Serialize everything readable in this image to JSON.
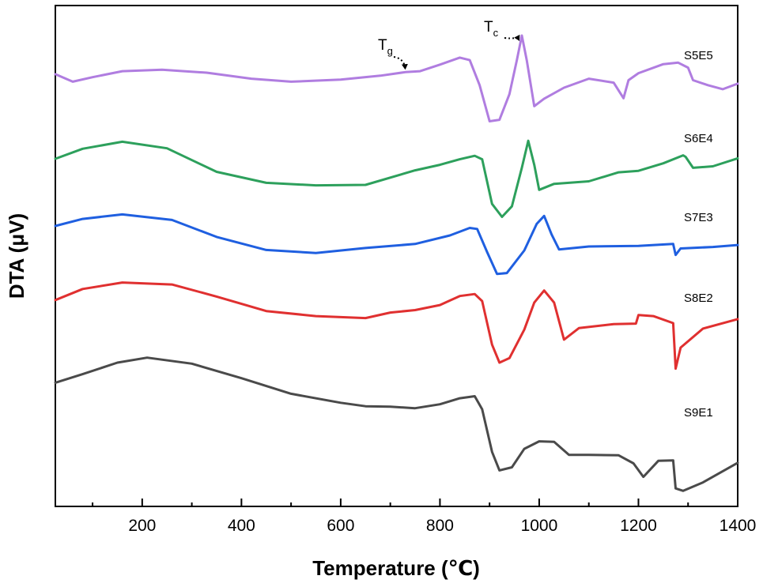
{
  "chart_data": {
    "type": "line",
    "title": "",
    "xlabel": "Temperature (℃)",
    "ylabel": "DTA (μV)",
    "xlim": [
      25,
      1400
    ],
    "ylim": [
      0,
      10
    ],
    "x_ticks": [
      200,
      400,
      600,
      800,
      1000,
      1200,
      1400
    ],
    "x_tick_labels": [
      "200",
      "400",
      "600",
      "800",
      "1000",
      "1200",
      "1400"
    ],
    "y_ticks_shown": false,
    "grid": false,
    "series": [
      {
        "name": "S5E5",
        "color": "#b07de0",
        "points": [
          [
            25,
            8.63
          ],
          [
            60,
            8.48
          ],
          [
            100,
            8.57
          ],
          [
            160,
            8.69
          ],
          [
            240,
            8.72
          ],
          [
            330,
            8.66
          ],
          [
            420,
            8.54
          ],
          [
            500,
            8.48
          ],
          [
            600,
            8.52
          ],
          [
            680,
            8.6
          ],
          [
            730,
            8.67
          ],
          [
            760,
            8.69
          ],
          [
            800,
            8.82
          ],
          [
            840,
            8.96
          ],
          [
            860,
            8.91
          ],
          [
            880,
            8.41
          ],
          [
            900,
            7.69
          ],
          [
            920,
            7.72
          ],
          [
            940,
            8.23
          ],
          [
            955,
            8.91
          ],
          [
            965,
            9.4
          ],
          [
            975,
            8.9
          ],
          [
            990,
            7.99
          ],
          [
            1010,
            8.14
          ],
          [
            1050,
            8.36
          ],
          [
            1100,
            8.54
          ],
          [
            1150,
            8.46
          ],
          [
            1170,
            8.15
          ],
          [
            1180,
            8.51
          ],
          [
            1200,
            8.65
          ],
          [
            1250,
            8.83
          ],
          [
            1280,
            8.86
          ],
          [
            1300,
            8.76
          ],
          [
            1310,
            8.51
          ],
          [
            1340,
            8.41
          ],
          [
            1370,
            8.33
          ],
          [
            1400,
            8.44
          ]
        ]
      },
      {
        "name": "S6E4",
        "color": "#2da05c",
        "points": [
          [
            25,
            6.94
          ],
          [
            80,
            7.14
          ],
          [
            160,
            7.28
          ],
          [
            250,
            7.15
          ],
          [
            350,
            6.68
          ],
          [
            450,
            6.46
          ],
          [
            550,
            6.41
          ],
          [
            650,
            6.42
          ],
          [
            750,
            6.71
          ],
          [
            800,
            6.82
          ],
          [
            840,
            6.93
          ],
          [
            870,
            7.0
          ],
          [
            885,
            6.93
          ],
          [
            905,
            6.04
          ],
          [
            925,
            5.78
          ],
          [
            945,
            5.99
          ],
          [
            965,
            6.76
          ],
          [
            978,
            7.3
          ],
          [
            990,
            6.82
          ],
          [
            1000,
            6.32
          ],
          [
            1030,
            6.44
          ],
          [
            1100,
            6.49
          ],
          [
            1160,
            6.67
          ],
          [
            1200,
            6.7
          ],
          [
            1250,
            6.85
          ],
          [
            1290,
            7.01
          ],
          [
            1295,
            6.98
          ],
          [
            1310,
            6.76
          ],
          [
            1350,
            6.79
          ],
          [
            1400,
            6.95
          ]
        ]
      },
      {
        "name": "S7E3",
        "color": "#1f5fe0",
        "points": [
          [
            25,
            5.6
          ],
          [
            80,
            5.74
          ],
          [
            160,
            5.83
          ],
          [
            260,
            5.72
          ],
          [
            350,
            5.38
          ],
          [
            450,
            5.12
          ],
          [
            550,
            5.06
          ],
          [
            650,
            5.16
          ],
          [
            750,
            5.24
          ],
          [
            820,
            5.41
          ],
          [
            860,
            5.56
          ],
          [
            875,
            5.54
          ],
          [
            895,
            5.08
          ],
          [
            915,
            4.64
          ],
          [
            935,
            4.66
          ],
          [
            970,
            5.11
          ],
          [
            995,
            5.64
          ],
          [
            1010,
            5.8
          ],
          [
            1025,
            5.43
          ],
          [
            1040,
            5.13
          ],
          [
            1100,
            5.19
          ],
          [
            1200,
            5.2
          ],
          [
            1270,
            5.24
          ],
          [
            1275,
            5.02
          ],
          [
            1285,
            5.15
          ],
          [
            1350,
            5.18
          ],
          [
            1400,
            5.22
          ]
        ]
      },
      {
        "name": "S8E2",
        "color": "#e03030",
        "points": [
          [
            25,
            4.12
          ],
          [
            80,
            4.34
          ],
          [
            160,
            4.47
          ],
          [
            260,
            4.43
          ],
          [
            350,
            4.19
          ],
          [
            450,
            3.9
          ],
          [
            550,
            3.8
          ],
          [
            650,
            3.76
          ],
          [
            700,
            3.87
          ],
          [
            750,
            3.92
          ],
          [
            800,
            4.02
          ],
          [
            840,
            4.2
          ],
          [
            870,
            4.24
          ],
          [
            885,
            4.1
          ],
          [
            905,
            3.23
          ],
          [
            920,
            2.87
          ],
          [
            940,
            2.96
          ],
          [
            970,
            3.53
          ],
          [
            990,
            4.07
          ],
          [
            1010,
            4.31
          ],
          [
            1030,
            4.07
          ],
          [
            1050,
            3.33
          ],
          [
            1080,
            3.56
          ],
          [
            1150,
            3.64
          ],
          [
            1195,
            3.65
          ],
          [
            1200,
            3.82
          ],
          [
            1230,
            3.8
          ],
          [
            1270,
            3.66
          ],
          [
            1275,
            2.75
          ],
          [
            1285,
            3.17
          ],
          [
            1330,
            3.55
          ],
          [
            1400,
            3.74
          ]
        ]
      },
      {
        "name": "S9E1",
        "color": "#4a4a4a",
        "points": [
          [
            25,
            2.47
          ],
          [
            80,
            2.64
          ],
          [
            150,
            2.87
          ],
          [
            210,
            2.97
          ],
          [
            300,
            2.85
          ],
          [
            400,
            2.56
          ],
          [
            500,
            2.25
          ],
          [
            600,
            2.07
          ],
          [
            650,
            2.0
          ],
          [
            700,
            1.99
          ],
          [
            750,
            1.96
          ],
          [
            800,
            2.04
          ],
          [
            840,
            2.16
          ],
          [
            870,
            2.2
          ],
          [
            885,
            1.94
          ],
          [
            905,
            1.09
          ],
          [
            920,
            0.72
          ],
          [
            945,
            0.78
          ],
          [
            970,
            1.15
          ],
          [
            1000,
            1.3
          ],
          [
            1030,
            1.29
          ],
          [
            1060,
            1.03
          ],
          [
            1100,
            1.03
          ],
          [
            1160,
            1.02
          ],
          [
            1190,
            0.86
          ],
          [
            1210,
            0.59
          ],
          [
            1240,
            0.91
          ],
          [
            1270,
            0.92
          ],
          [
            1275,
            0.36
          ],
          [
            1290,
            0.31
          ],
          [
            1330,
            0.48
          ],
          [
            1400,
            0.87
          ]
        ]
      }
    ],
    "series_labels": [
      "S5E5",
      "S6E4",
      "S7E3",
      "S8E2",
      "S9E1"
    ],
    "annotations": [
      {
        "main": "T",
        "sub": "g",
        "points_to_x": 730,
        "points_to_y": 8.64
      },
      {
        "main": "T",
        "sub": "c",
        "points_to_x": 960,
        "points_to_y": 9.31
      }
    ]
  }
}
